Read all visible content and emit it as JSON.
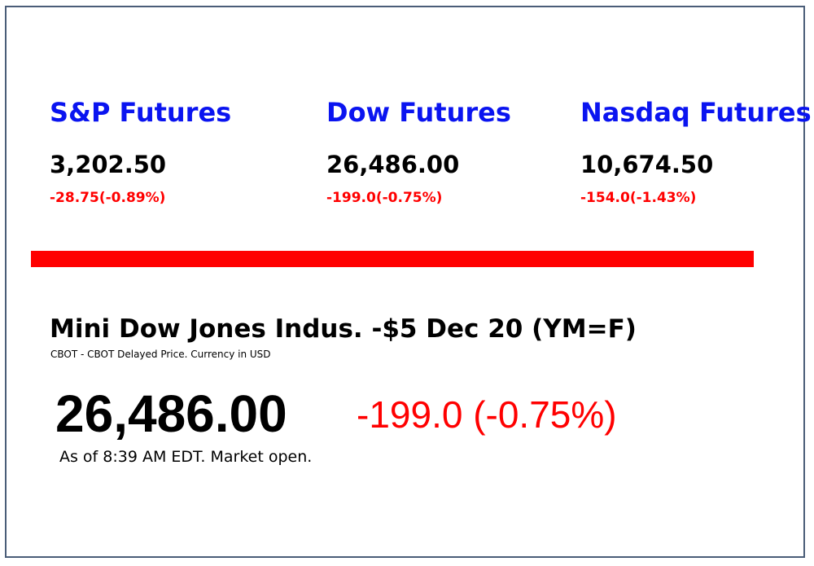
{
  "futures": [
    {
      "name": "S&P Futures",
      "price": "3,202.50",
      "change": "-28.75(-0.89%)"
    },
    {
      "name": "Dow Futures",
      "price": "26,486.00",
      "change": "-199.0(-0.75%)"
    },
    {
      "name": "Nasdaq Futures",
      "price": "10,674.50",
      "change": "-154.0(-1.43%)"
    }
  ],
  "quote": {
    "title": "Mini Dow Jones Indus. -$5 Dec 20 (YM=F)",
    "subtitle": "CBOT - CBOT Delayed Price. Currency in USD",
    "price": "26,486.00",
    "change": "-199.0 (-0.75%)",
    "as_of": "As of 8:39 AM EDT. Market open."
  },
  "colors": {
    "future_name": "#0a14f0",
    "negative": "#ff0000",
    "divider": "#ff0000",
    "border": "#4a5d78"
  }
}
